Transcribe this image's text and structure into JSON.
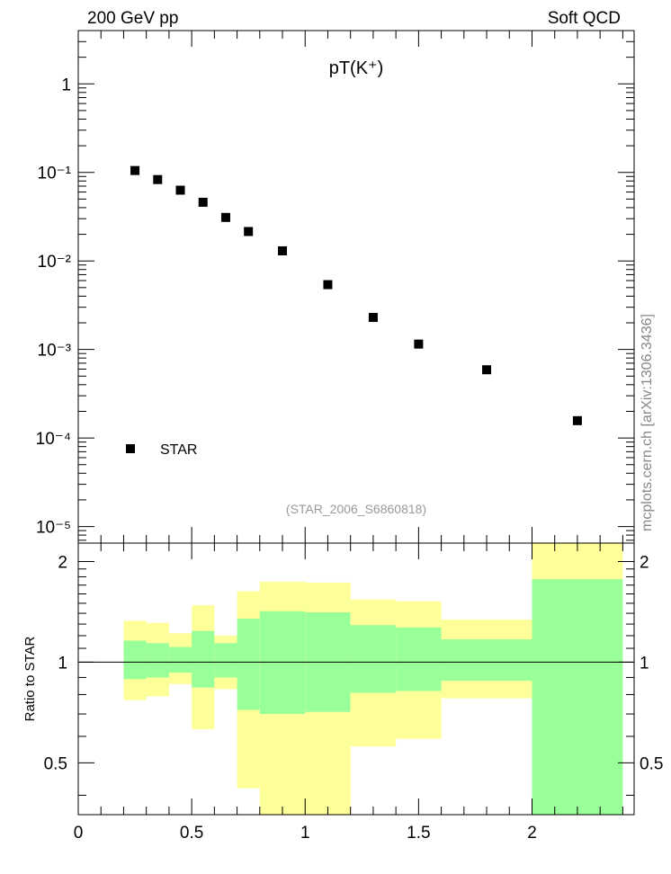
{
  "header": {
    "left": "200 GeV pp",
    "right": "Soft QCD"
  },
  "side_label": "mcplots.cern.ch [arXiv:1306.3436]",
  "chart_data": [
    {
      "type": "scatter",
      "title": "pT(K⁺)",
      "annotation": "(STAR_2006_S6860818)",
      "yscale": "log",
      "ylim": [
        6.5e-06,
        4
      ],
      "xlim": [
        0,
        2.45
      ],
      "y_tick_labels": [
        "1",
        "10⁻¹",
        "10⁻²",
        "10⁻³",
        "10⁻⁴",
        "10⁻⁵"
      ],
      "legend": {
        "placement": "bottom-left",
        "entries": [
          "STAR"
        ]
      },
      "series": [
        {
          "name": "STAR",
          "color": "#000000",
          "x": [
            0.25,
            0.35,
            0.45,
            0.55,
            0.65,
            0.75,
            0.9,
            1.1,
            1.3,
            1.5,
            1.8,
            2.2
          ],
          "y": [
            0.105,
            0.083,
            0.063,
            0.046,
            0.031,
            0.0215,
            0.013,
            0.0054,
            0.0023,
            0.00115,
            0.00059,
            0.000157
          ]
        }
      ]
    },
    {
      "type": "area",
      "ylabel": "Ratio to STAR",
      "xlim": [
        0,
        2.45
      ],
      "ylim": [
        0.35,
        2.27
      ],
      "x_tick_labels": [
        "0",
        "0.5",
        "1",
        "1.5",
        "2"
      ],
      "y_tick_labels": [
        "0.5",
        "1",
        "2"
      ],
      "reference_line": 1,
      "colors": {
        "outer_band": "#ffff99",
        "inner_band": "#99ff99"
      },
      "bins": [
        {
          "x": [
            0.2,
            0.3
          ],
          "outer": [
            0.77,
            1.33
          ],
          "inner": [
            0.89,
            1.16
          ]
        },
        {
          "x": [
            0.3,
            0.4
          ],
          "outer": [
            0.79,
            1.31
          ],
          "inner": [
            0.9,
            1.14
          ]
        },
        {
          "x": [
            0.4,
            0.5
          ],
          "outer": [
            0.86,
            1.22
          ],
          "inner": [
            0.93,
            1.11
          ]
        },
        {
          "x": [
            0.5,
            0.6
          ],
          "outer": [
            0.63,
            1.48
          ],
          "inner": [
            0.84,
            1.24
          ]
        },
        {
          "x": [
            0.6,
            0.7
          ],
          "outer": [
            0.83,
            1.2
          ],
          "inner": [
            0.9,
            1.14
          ]
        },
        {
          "x": [
            0.7,
            0.8
          ],
          "outer": [
            0.42,
            1.63
          ],
          "inner": [
            0.72,
            1.35
          ]
        },
        {
          "x": [
            0.8,
            1.0
          ],
          "outer": [
            0.35,
            1.74
          ],
          "inner": [
            0.7,
            1.42
          ]
        },
        {
          "x": [
            1.0,
            1.2
          ],
          "outer": [
            0.35,
            1.73
          ],
          "inner": [
            0.71,
            1.41
          ]
        },
        {
          "x": [
            1.2,
            1.4
          ],
          "outer": [
            0.56,
            1.54
          ],
          "inner": [
            0.81,
            1.29
          ]
        },
        {
          "x": [
            1.4,
            1.6
          ],
          "outer": [
            0.59,
            1.52
          ],
          "inner": [
            0.82,
            1.27
          ]
        },
        {
          "x": [
            1.6,
            2.0
          ],
          "outer": [
            0.78,
            1.34
          ],
          "inner": [
            0.88,
            1.17
          ]
        },
        {
          "x": [
            2.0,
            2.4
          ],
          "outer": [
            0.35,
            2.27
          ],
          "inner": [
            0.35,
            1.77
          ]
        }
      ]
    }
  ]
}
